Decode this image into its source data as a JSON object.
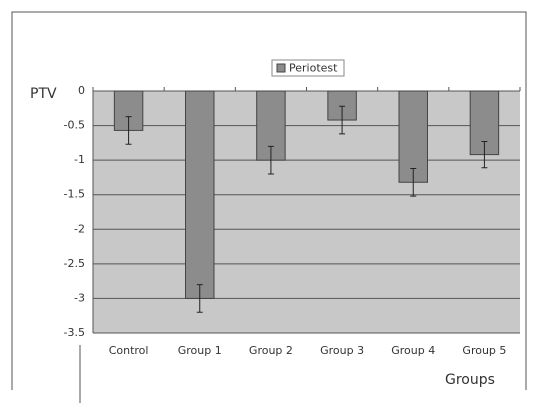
{
  "chart_data": {
    "type": "bar",
    "y_label": "PTV",
    "x_label": "Groups",
    "categories": [
      "Control",
      "Group 1",
      "Group 2",
      "Group 3",
      "Group 4",
      "Group 5"
    ],
    "series": [
      {
        "name": "Periotest",
        "color": "#8c8c8c",
        "values": [
          -0.57,
          -3.0,
          -1.0,
          -0.42,
          -1.32,
          -0.92
        ],
        "errors": [
          0.2,
          0.2,
          0.2,
          0.2,
          0.2,
          0.19
        ]
      }
    ],
    "ylim": [
      -3.5,
      0
    ],
    "yticks": [
      0,
      -0.5,
      -1,
      -1.5,
      -2,
      -2.5,
      -3,
      -3.5
    ],
    "grid": true,
    "legend": "top"
  }
}
